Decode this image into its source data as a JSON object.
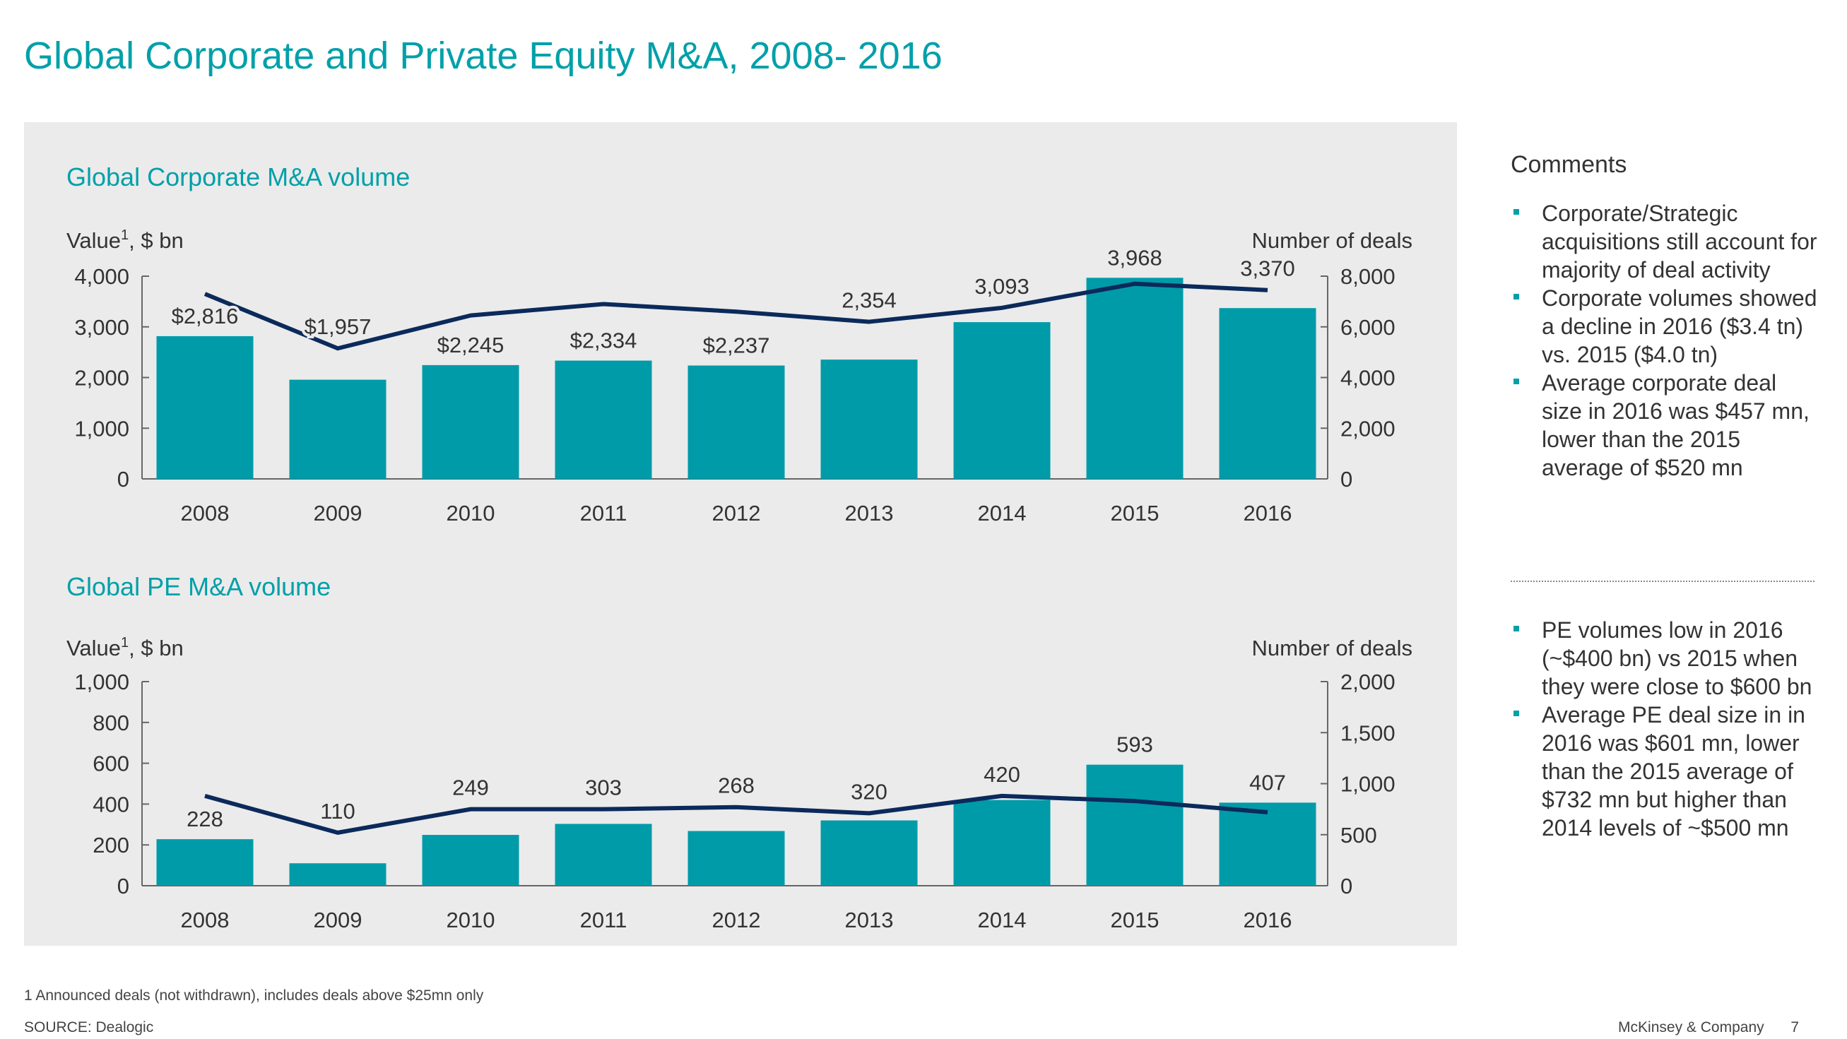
{
  "page": {
    "title": "Global Corporate and Private Equity M&A,  2008- 2016",
    "footnote": "1 Announced deals (not withdrawn), includes deals above $25mn only",
    "source": "SOURCE: Dealogic",
    "brand": "McKinsey & Company",
    "page_number": "7"
  },
  "colors": {
    "bar": "#009ba8",
    "line": "#0b2a5b",
    "accent": "#00a0a9"
  },
  "comments": {
    "title": "Comments",
    "group1": [
      "Corporate/Strategic acquisitions still account for majority of deal activity",
      "Corporate volumes showed a decline in 2016 ($3.4 tn) vs. 2015 ($4.0 tn)",
      "Average corporate deal size in 2016 was $457 mn, lower than the 2015 average of $520 mn"
    ],
    "group2": [
      "PE volumes low in 2016 (~$400 bn) vs 2015 when they were close to $600 bn",
      "Average PE deal size in in 2016 was $601 mn, lower than the 2015 average of $732 mn but higher than 2014 levels of ~$500 mn"
    ]
  },
  "chart_data": [
    {
      "type": "bar",
      "title": "Global Corporate M&A volume",
      "ylabel": "Value",
      "ylabel_sup": "1",
      "ylabel_suffix": ", $ bn",
      "y2label": "Number of deals",
      "categories": [
        "2008",
        "2009",
        "2010",
        "2011",
        "2012",
        "2013",
        "2014",
        "2015",
        "2016"
      ],
      "ylim": [
        0,
        4000
      ],
      "yticks": [
        0,
        1000,
        2000,
        3000,
        4000
      ],
      "ytick_labels": [
        "0",
        "1,000",
        "2,000",
        "3,000",
        "4,000"
      ],
      "y2lim": [
        0,
        8000
      ],
      "y2ticks": [
        0,
        2000,
        4000,
        6000,
        8000
      ],
      "y2tick_labels": [
        "0",
        "2,000",
        "4,000",
        "6,000",
        "8,000"
      ],
      "series": [
        {
          "kind": "bar",
          "values": [
            2816,
            1957,
            2245,
            2334,
            2237,
            2354,
            3093,
            3968,
            3370
          ],
          "labels": [
            "$2,816",
            "$1,957",
            "$2,245",
            "$2,334",
            "$2,237",
            "2,354",
            "3,093",
            "3,968",
            "3,370"
          ]
        },
        {
          "kind": "line",
          "axis": "secondary",
          "values": [
            7300,
            5150,
            6450,
            6900,
            6600,
            6200,
            6750,
            7700,
            7450
          ]
        }
      ],
      "grid": false,
      "legend": "none"
    },
    {
      "type": "bar",
      "title": "Global PE M&A volume",
      "ylabel": "Value",
      "ylabel_sup": "1",
      "ylabel_suffix": ", $ bn",
      "y2label": "Number of deals",
      "categories": [
        "2008",
        "2009",
        "2010",
        "2011",
        "2012",
        "2013",
        "2014",
        "2015",
        "2016"
      ],
      "ylim": [
        0,
        1000
      ],
      "yticks": [
        0,
        200,
        400,
        600,
        800,
        1000
      ],
      "ytick_labels": [
        "0",
        "200",
        "400",
        "600",
        "800",
        "1,000"
      ],
      "y2lim": [
        0,
        2000
      ],
      "y2ticks": [
        0,
        500,
        1000,
        1500,
        2000
      ],
      "y2tick_labels": [
        "0",
        "500",
        "1,000",
        "1,500",
        "2,000"
      ],
      "series": [
        {
          "kind": "bar",
          "values": [
            228,
            110,
            249,
            303,
            268,
            320,
            420,
            593,
            407
          ],
          "labels": [
            "228",
            "110",
            "249",
            "303",
            "268",
            "320",
            "420",
            "593",
            "407"
          ]
        },
        {
          "kind": "line",
          "axis": "secondary",
          "values": [
            880,
            520,
            750,
            750,
            770,
            710,
            880,
            830,
            720
          ]
        }
      ],
      "grid": false,
      "legend": "none"
    }
  ]
}
